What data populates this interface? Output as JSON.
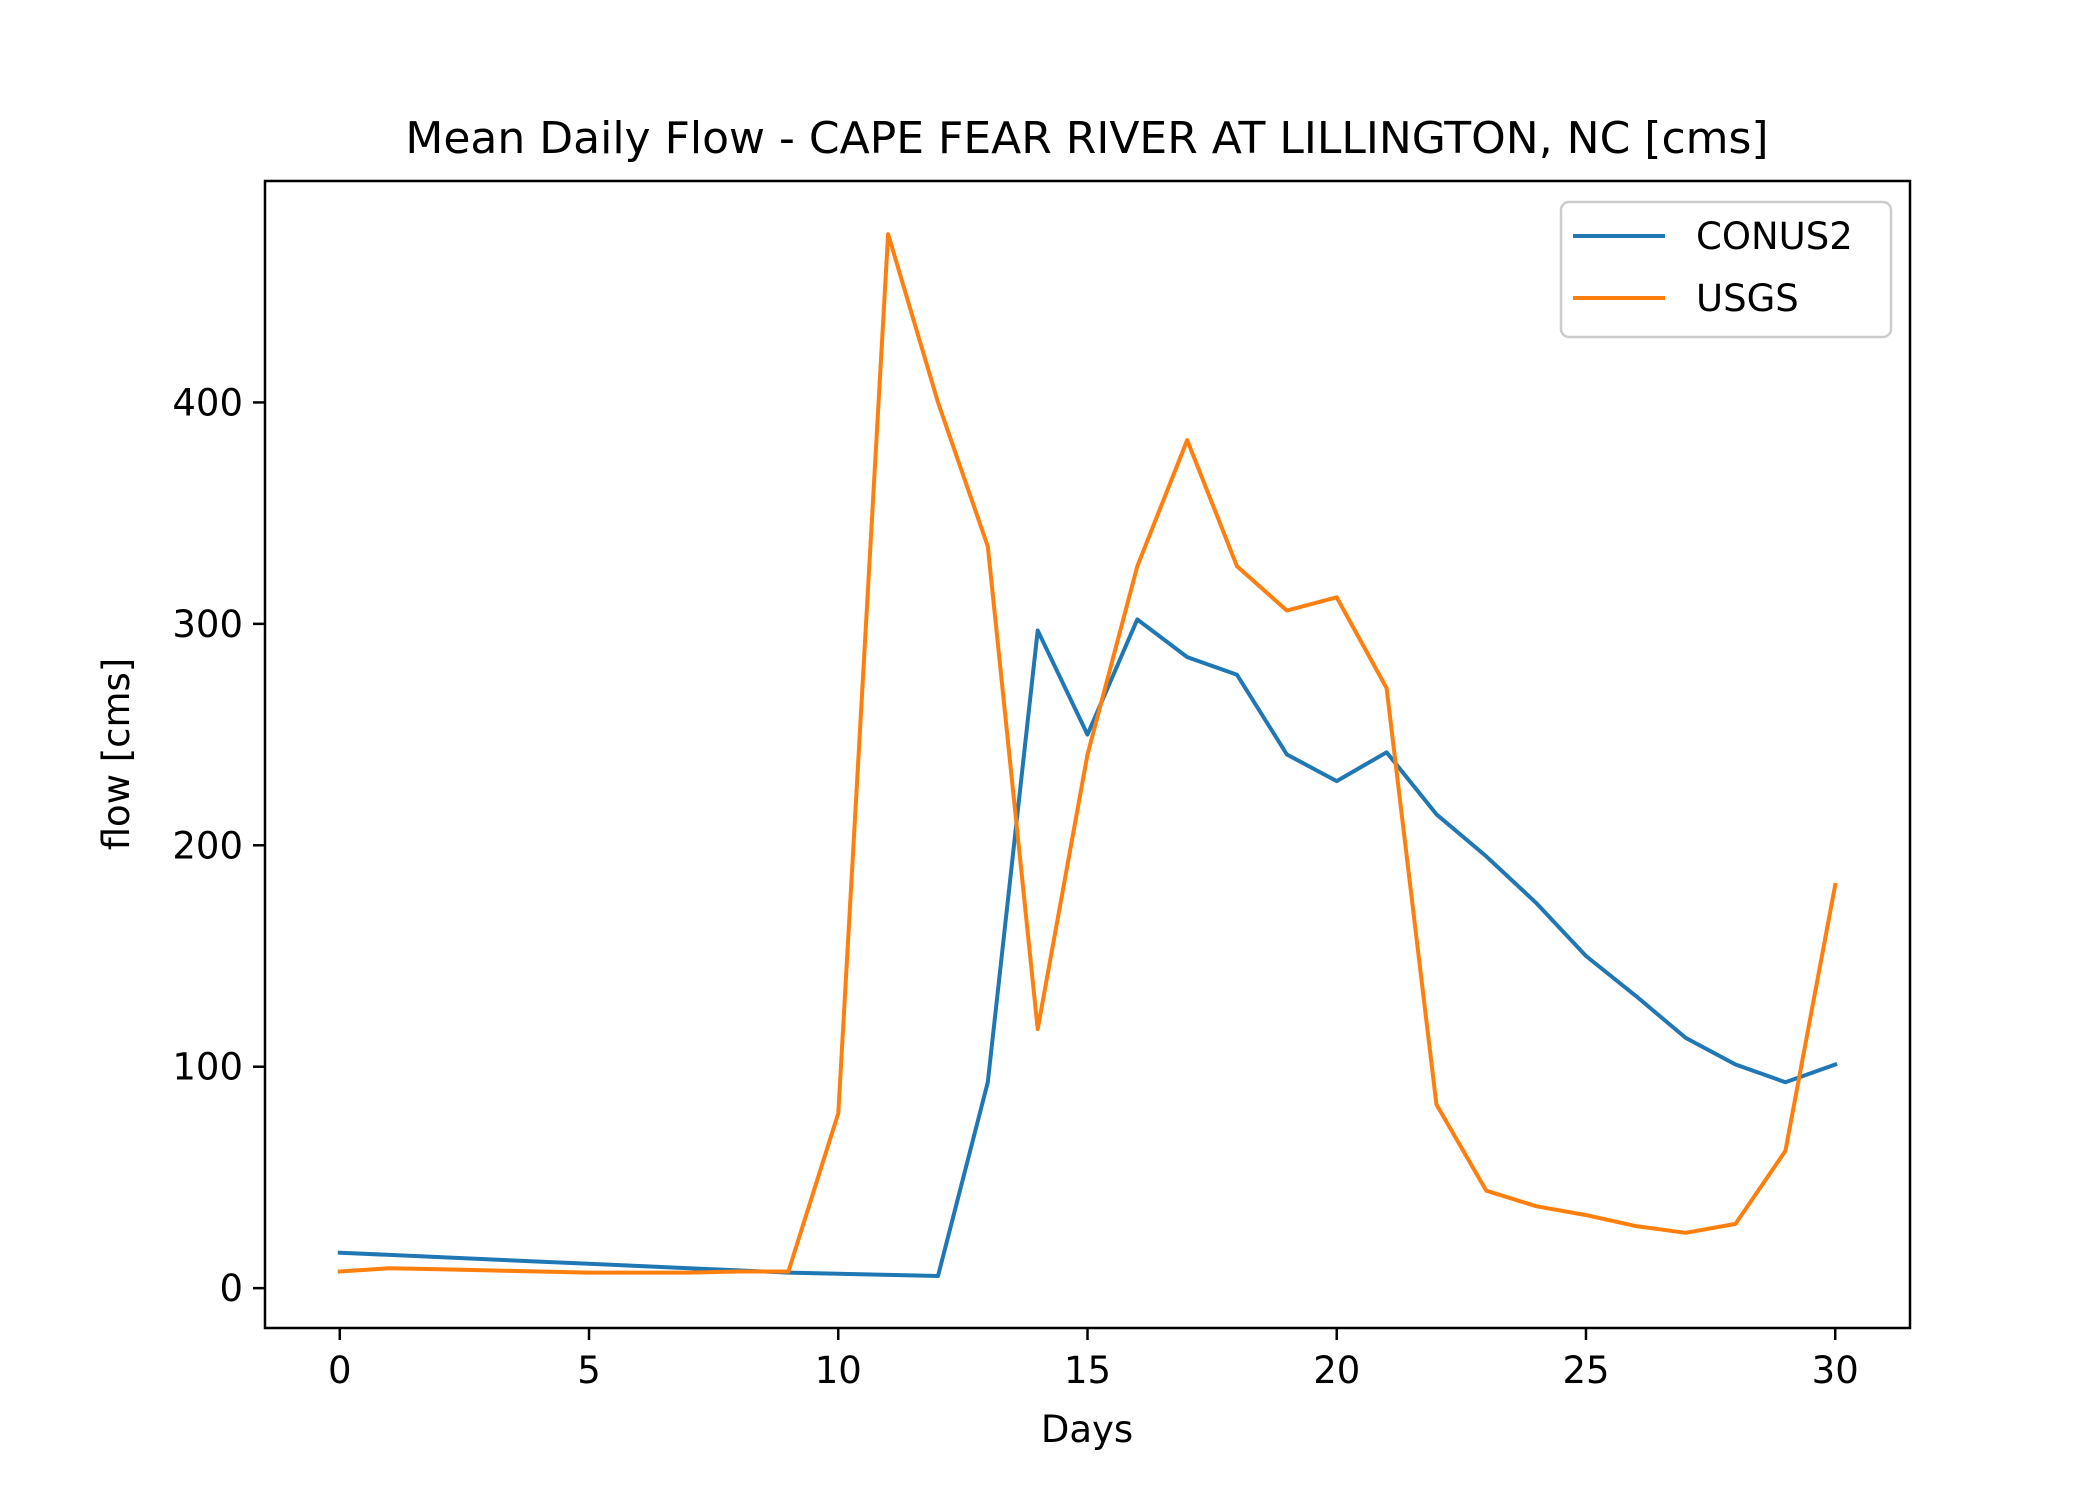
{
  "chart_data": {
    "type": "line",
    "title": "Mean Daily Flow - CAPE FEAR RIVER AT LILLINGTON, NC [cms]",
    "xlabel": "Days",
    "ylabel": "flow [cms]",
    "xlim": [
      -1.5,
      31.5
    ],
    "ylim": [
      -18,
      500
    ],
    "x_ticks": [
      0,
      5,
      10,
      15,
      20,
      25,
      30
    ],
    "y_ticks": [
      0,
      100,
      200,
      300,
      400
    ],
    "grid": false,
    "legend_position": "top-right",
    "x": [
      0,
      1,
      2,
      3,
      4,
      5,
      6,
      7,
      8,
      9,
      10,
      11,
      12,
      13,
      14,
      15,
      16,
      17,
      18,
      19,
      20,
      21,
      22,
      23,
      24,
      25,
      26,
      27,
      28,
      29,
      30
    ],
    "series": [
      {
        "name": "CONUS2",
        "color": "#1f77b4",
        "values": [
          16,
          15,
          14,
          13,
          12,
          11,
          10,
          9,
          8,
          7,
          6.5,
          6,
          5.5,
          93,
          297,
          250,
          302,
          285,
          277,
          241,
          229,
          242,
          214,
          195,
          174,
          150,
          132,
          113,
          101,
          93,
          101
        ]
      },
      {
        "name": "USGS",
        "color": "#ff7f0e",
        "values": [
          7.5,
          9,
          8.5,
          8,
          7.5,
          7,
          7,
          7,
          7.5,
          7.5,
          79,
          476,
          400,
          335,
          117,
          241,
          326,
          383,
          326,
          306,
          312,
          271,
          83,
          44,
          37,
          33,
          28,
          25,
          29,
          62,
          182
        ]
      }
    ]
  }
}
